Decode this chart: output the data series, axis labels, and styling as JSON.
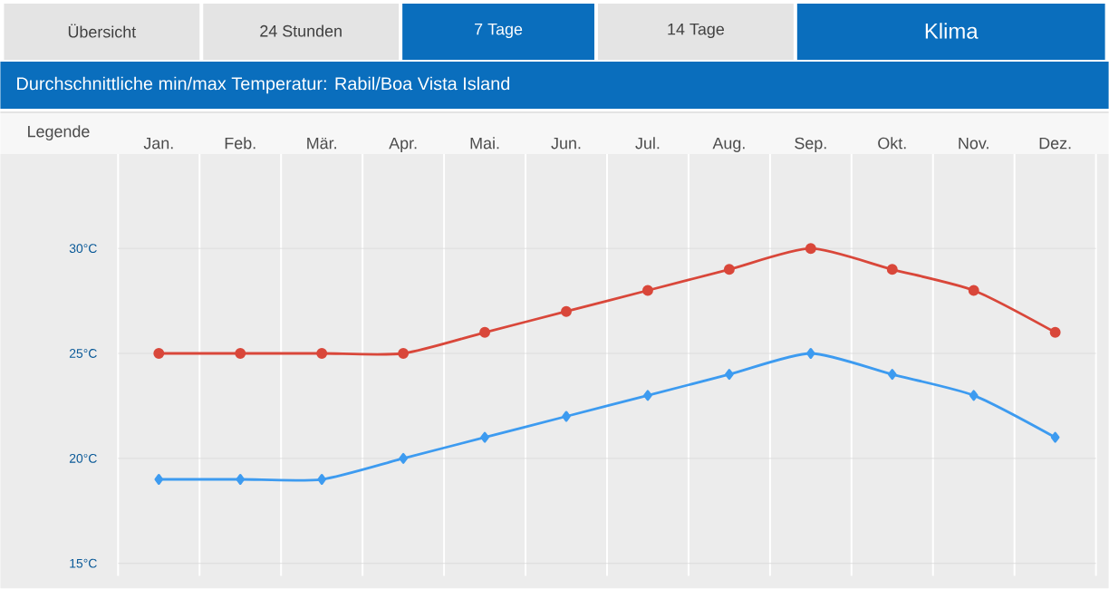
{
  "chart_data": {
    "type": "line",
    "title": "Durchschnittliche min/max Temperatur: Rabil/Boa Vista Island",
    "ylabel": "Legende",
    "annotations": [
      "Übersicht",
      "24 Stunden",
      "7 Tage",
      "14 Tage",
      "Klima"
    ],
    "categories": [
      "Jan.",
      "Feb.",
      "Mär.",
      "Apr.",
      "Mai.",
      "Jun.",
      "Jul.",
      "Aug.",
      "Sep.",
      "Okt.",
      "Nov.",
      "Dez."
    ],
    "series": [
      {
        "color": "#d9473a",
        "marker": "circle",
        "values": [
          25,
          25,
          25,
          25,
          26,
          27,
          28,
          29,
          30,
          29,
          28,
          26
        ]
      },
      {
        "color": "#3d9bf0",
        "marker": "diamond",
        "values": [
          19,
          19,
          19,
          20,
          21,
          22,
          23,
          24,
          25,
          24,
          23,
          21
        ]
      }
    ],
    "ylim": [
      14.4,
      34.5
    ],
    "yticks": [
      {
        "value": 15,
        "label": "15°C"
      },
      {
        "value": 20,
        "label": "20°C"
      },
      {
        "value": 25,
        "label": "25°C"
      },
      {
        "value": 30,
        "label": "30°C"
      }
    ],
    "grid": true
  }
}
